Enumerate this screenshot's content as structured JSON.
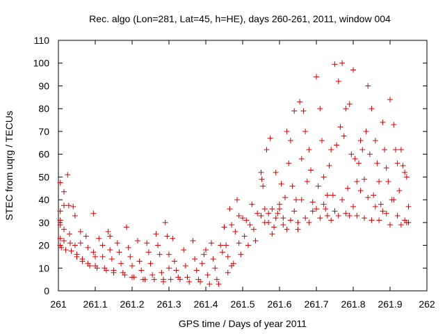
{
  "chart_data": {
    "type": "scatter",
    "title": "Rec. algo (Lon=281, Lat=45, h=HE), days 260-261, 2011, window 004",
    "xlabel": "GPS time / Days of year 2011",
    "ylabel": "STEC from uqrg / TECUs",
    "xlim": [
      261,
      262
    ],
    "ylim": [
      0,
      110
    ],
    "xticks": [
      261,
      261.1,
      261.2,
      261.3,
      261.4,
      261.5,
      261.6,
      261.7,
      261.8,
      261.9,
      262
    ],
    "xtick_labels": [
      "261",
      "261.1",
      "261.2",
      "261.3",
      "261.4",
      "261.5",
      "261.6",
      "261.7",
      "261.8",
      "261.9",
      "262"
    ],
    "yticks": [
      0,
      10,
      20,
      30,
      40,
      50,
      60,
      70,
      80,
      90,
      100,
      110
    ],
    "ytick_labels": [
      "0",
      "10",
      "20",
      "30",
      "40",
      "50",
      "60",
      "70",
      "80",
      "90",
      "100",
      "110"
    ],
    "grid": false,
    "marker": "plus",
    "color": "#d40000",
    "points": [
      [
        261.005,
        47.5
      ],
      [
        261.005,
        35
      ],
      [
        261.005,
        31
      ],
      [
        261.005,
        29
      ],
      [
        261.005,
        23
      ],
      [
        261.005,
        20
      ],
      [
        261.008,
        19
      ],
      [
        261.015,
        43.5
      ],
      [
        261.015,
        37.5
      ],
      [
        261.015,
        27
      ],
      [
        261.015,
        22
      ],
      [
        261.02,
        18
      ],
      [
        261.025,
        51
      ],
      [
        261.028,
        37.5
      ],
      [
        261.03,
        25
      ],
      [
        261.032,
        21
      ],
      [
        261.035,
        17.5
      ],
      [
        261.04,
        37
      ],
      [
        261.045,
        33
      ],
      [
        261.045,
        20
      ],
      [
        261.05,
        16
      ],
      [
        261.05,
        15
      ],
      [
        261.06,
        26
      ],
      [
        261.06,
        21
      ],
      [
        261.065,
        14
      ],
      [
        261.065,
        13
      ],
      [
        261.075,
        24
      ],
      [
        261.08,
        19
      ],
      [
        261.08,
        12
      ],
      [
        261.085,
        11
      ],
      [
        261.095,
        34
      ],
      [
        261.095,
        17
      ],
      [
        261.1,
        15
      ],
      [
        261.1,
        11
      ],
      [
        261.105,
        10
      ],
      [
        261.11,
        23
      ],
      [
        261.12,
        20
      ],
      [
        261.12,
        15
      ],
      [
        261.125,
        10
      ],
      [
        261.13,
        9
      ],
      [
        261.135,
        26
      ],
      [
        261.14,
        24
      ],
      [
        261.14,
        18
      ],
      [
        261.145,
        14
      ],
      [
        261.15,
        9
      ],
      [
        261.15,
        8
      ],
      [
        261.16,
        21
      ],
      [
        261.165,
        17
      ],
      [
        261.17,
        12
      ],
      [
        261.175,
        8
      ],
      [
        261.18,
        7
      ],
      [
        261.185,
        28
      ],
      [
        261.19,
        19
      ],
      [
        261.195,
        15
      ],
      [
        261.2,
        11
      ],
      [
        261.2,
        6
      ],
      [
        261.205,
        6
      ],
      [
        261.215,
        22
      ],
      [
        261.22,
        13
      ],
      [
        261.225,
        9
      ],
      [
        261.23,
        5
      ],
      [
        261.235,
        5
      ],
      [
        261.24,
        21
      ],
      [
        261.245,
        17
      ],
      [
        261.25,
        12
      ],
      [
        261.255,
        7
      ],
      [
        261.26,
        5
      ],
      [
        261.265,
        25
      ],
      [
        261.27,
        20
      ],
      [
        261.275,
        16
      ],
      [
        261.28,
        8
      ],
      [
        261.285,
        5
      ],
      [
        261.285,
        4
      ],
      [
        261.29,
        30
      ],
      [
        261.295,
        24
      ],
      [
        261.3,
        16
      ],
      [
        261.3,
        10
      ],
      [
        261.305,
        5
      ],
      [
        261.31,
        23
      ],
      [
        261.315,
        13
      ],
      [
        261.32,
        9
      ],
      [
        261.325,
        6
      ],
      [
        261.33,
        5
      ],
      [
        261.34,
        18
      ],
      [
        261.345,
        11
      ],
      [
        261.35,
        6
      ],
      [
        261.355,
        4
      ],
      [
        261.365,
        22
      ],
      [
        261.37,
        14
      ],
      [
        261.375,
        9
      ],
      [
        261.38,
        5
      ],
      [
        261.385,
        4
      ],
      [
        261.39,
        12
      ],
      [
        261.395,
        16
      ],
      [
        261.4,
        18
      ],
      [
        261.405,
        7
      ],
      [
        261.41,
        3
      ],
      [
        261.415,
        21
      ],
      [
        261.42,
        14
      ],
      [
        261.425,
        10
      ],
      [
        261.43,
        5
      ],
      [
        261.435,
        3
      ],
      [
        261.44,
        20
      ],
      [
        261.445,
        17
      ],
      [
        261.45,
        28
      ],
      [
        261.455,
        20
      ],
      [
        261.46,
        15
      ],
      [
        261.46,
        8
      ],
      [
        261.465,
        36
      ],
      [
        261.47,
        29
      ],
      [
        261.47,
        11
      ],
      [
        261.475,
        12
      ],
      [
        261.48,
        26
      ],
      [
        261.485,
        40
      ],
      [
        261.49,
        33
      ],
      [
        261.49,
        21
      ],
      [
        261.495,
        16
      ],
      [
        261.5,
        32
      ],
      [
        261.505,
        24
      ],
      [
        261.51,
        31
      ],
      [
        261.515,
        20
      ],
      [
        261.52,
        29
      ],
      [
        261.525,
        38
      ],
      [
        261.53,
        27
      ],
      [
        261.535,
        22
      ],
      [
        261.54,
        34
      ],
      [
        261.55,
        52
      ],
      [
        261.552,
        49
      ],
      [
        261.555,
        46
      ],
      [
        261.56,
        36
      ],
      [
        261.565,
        62
      ],
      [
        261.57,
        30
      ],
      [
        261.575,
        67
      ],
      [
        261.58,
        36
      ],
      [
        261.585,
        28
      ],
      [
        261.59,
        52
      ],
      [
        261.595,
        34
      ],
      [
        261.6,
        36
      ],
      [
        261.605,
        47
      ],
      [
        261.61,
        32
      ],
      [
        261.615,
        41
      ],
      [
        261.62,
        70
      ],
      [
        261.625,
        56
      ],
      [
        261.63,
        66
      ],
      [
        261.635,
        46
      ],
      [
        261.64,
        79
      ],
      [
        261.645,
        40
      ],
      [
        261.65,
        30
      ],
      [
        261.655,
        83
      ],
      [
        261.66,
        58
      ],
      [
        261.665,
        79
      ],
      [
        261.67,
        70
      ],
      [
        261.675,
        48
      ],
      [
        261.68,
        62
      ],
      [
        261.685,
        53
      ],
      [
        261.69,
        35
      ],
      [
        261.7,
        94
      ],
      [
        261.705,
        46
      ],
      [
        261.71,
        80
      ],
      [
        261.715,
        66
      ],
      [
        261.72,
        50
      ],
      [
        261.725,
        36
      ],
      [
        261.73,
        42
      ],
      [
        261.735,
        55
      ],
      [
        261.74,
        62
      ],
      [
        261.745,
        42
      ],
      [
        261.75,
        99.5
      ],
      [
        261.755,
        64
      ],
      [
        261.76,
        92
      ],
      [
        261.765,
        72
      ],
      [
        261.77,
        100
      ],
      [
        261.775,
        68
      ],
      [
        261.78,
        80
      ],
      [
        261.785,
        45
      ],
      [
        261.79,
        82
      ],
      [
        261.795,
        60
      ],
      [
        261.8,
        97
      ],
      [
        261.805,
        58
      ],
      [
        261.81,
        48
      ],
      [
        261.815,
        56
      ],
      [
        261.82,
        66
      ],
      [
        261.825,
        62
      ],
      [
        261.83,
        49
      ],
      [
        261.835,
        70
      ],
      [
        261.84,
        90
      ],
      [
        261.845,
        60
      ],
      [
        261.85,
        80
      ],
      [
        261.855,
        42
      ],
      [
        261.86,
        66
      ],
      [
        261.865,
        56
      ],
      [
        261.87,
        48
      ],
      [
        261.875,
        38
      ],
      [
        261.88,
        74
      ],
      [
        261.885,
        62
      ],
      [
        261.89,
        54
      ],
      [
        261.895,
        48
      ],
      [
        261.9,
        84
      ],
      [
        261.905,
        40
      ],
      [
        261.91,
        73
      ],
      [
        261.915,
        62
      ],
      [
        261.92,
        56
      ],
      [
        261.925,
        44
      ],
      [
        261.93,
        62
      ],
      [
        261.935,
        55
      ],
      [
        261.94,
        52
      ],
      [
        261.945,
        50
      ],
      [
        261.95,
        37
      ],
      [
        261.95,
        30
      ],
      [
        261.55,
        33
      ],
      [
        261.56,
        30
      ],
      [
        261.57,
        34
      ],
      [
        261.58,
        25
      ],
      [
        261.59,
        32
      ],
      [
        261.6,
        38
      ],
      [
        261.61,
        29
      ],
      [
        261.62,
        27
      ],
      [
        261.63,
        31
      ],
      [
        261.64,
        35
      ],
      [
        261.65,
        27
      ],
      [
        261.66,
        40
      ],
      [
        261.67,
        32
      ],
      [
        261.68,
        30
      ],
      [
        261.69,
        39
      ],
      [
        261.7,
        36
      ],
      [
        261.71,
        32
      ],
      [
        261.72,
        38
      ],
      [
        261.73,
        33
      ],
      [
        261.74,
        31
      ],
      [
        261.75,
        35
      ],
      [
        261.76,
        33
      ],
      [
        261.77,
        40
      ],
      [
        261.78,
        34
      ],
      [
        261.79,
        33
      ],
      [
        261.8,
        37
      ],
      [
        261.81,
        33
      ],
      [
        261.82,
        44
      ],
      [
        261.83,
        32
      ],
      [
        261.84,
        41
      ],
      [
        261.85,
        31
      ],
      [
        261.86,
        37
      ],
      [
        261.87,
        31
      ],
      [
        261.88,
        35
      ],
      [
        261.89,
        34
      ],
      [
        261.9,
        29
      ],
      [
        261.91,
        40
      ],
      [
        261.92,
        33
      ],
      [
        261.93,
        29
      ],
      [
        261.94,
        31
      ],
      [
        261.945,
        30
      ]
    ]
  }
}
